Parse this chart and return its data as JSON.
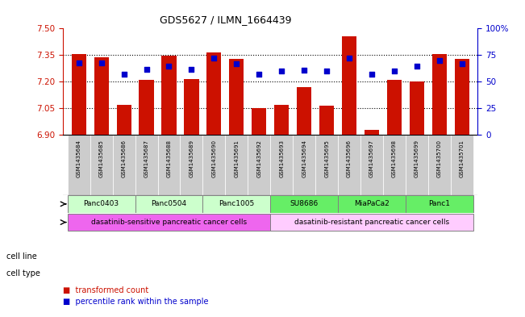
{
  "title": "GDS5627 / ILMN_1664439",
  "samples": [
    "GSM1435684",
    "GSM1435685",
    "GSM1435686",
    "GSM1435687",
    "GSM1435688",
    "GSM1435689",
    "GSM1435690",
    "GSM1435691",
    "GSM1435692",
    "GSM1435693",
    "GSM1435694",
    "GSM1435695",
    "GSM1435696",
    "GSM1435697",
    "GSM1435698",
    "GSM1435699",
    "GSM1435700",
    "GSM1435701"
  ],
  "bar_values": [
    7.355,
    7.34,
    7.07,
    7.21,
    7.345,
    7.215,
    7.365,
    7.33,
    7.05,
    7.07,
    7.17,
    7.065,
    7.455,
    6.93,
    7.21,
    7.2,
    7.355,
    7.33
  ],
  "percentile_values": [
    68,
    68,
    57,
    62,
    65,
    62,
    72,
    67,
    57,
    60,
    61,
    60,
    72,
    57,
    60,
    65,
    70,
    67
  ],
  "bar_color": "#cc1100",
  "percentile_color": "#0000cc",
  "ylim_left": [
    6.9,
    7.5
  ],
  "yticks_left": [
    6.9,
    7.05,
    7.2,
    7.35,
    7.5
  ],
  "ylim_right": [
    0,
    100
  ],
  "yticks_right": [
    0,
    25,
    50,
    75,
    100
  ],
  "ytick_labels_right": [
    "0",
    "25",
    "50",
    "75",
    "100%"
  ],
  "bar_base": 6.9,
  "sample_box_color": "#cccccc",
  "cell_lines": [
    {
      "label": "Panc0403",
      "start": 0,
      "end": 2,
      "color": "#ccffcc"
    },
    {
      "label": "Panc0504",
      "start": 3,
      "end": 5,
      "color": "#ccffcc"
    },
    {
      "label": "Panc1005",
      "start": 6,
      "end": 8,
      "color": "#ccffcc"
    },
    {
      "label": "SU8686",
      "start": 9,
      "end": 11,
      "color": "#66ee66"
    },
    {
      "label": "MiaPaCa2",
      "start": 12,
      "end": 14,
      "color": "#66ee66"
    },
    {
      "label": "Panc1",
      "start": 15,
      "end": 17,
      "color": "#66ee66"
    }
  ],
  "cell_types": [
    {
      "label": "dasatinib-sensitive pancreatic cancer cells",
      "start": 0,
      "end": 8,
      "color": "#ee66ee"
    },
    {
      "label": "dasatinib-resistant pancreatic cancer cells",
      "start": 9,
      "end": 17,
      "color": "#ffccff"
    }
  ],
  "cell_line_label": "cell line",
  "cell_type_label": "cell type",
  "legend_items": [
    {
      "color": "#cc1100",
      "label": "transformed count"
    },
    {
      "color": "#0000cc",
      "label": "percentile rank within the sample"
    }
  ],
  "grid_color": "black",
  "background_color": "white",
  "tick_color_left": "#cc1100",
  "tick_color_right": "#0000cc"
}
